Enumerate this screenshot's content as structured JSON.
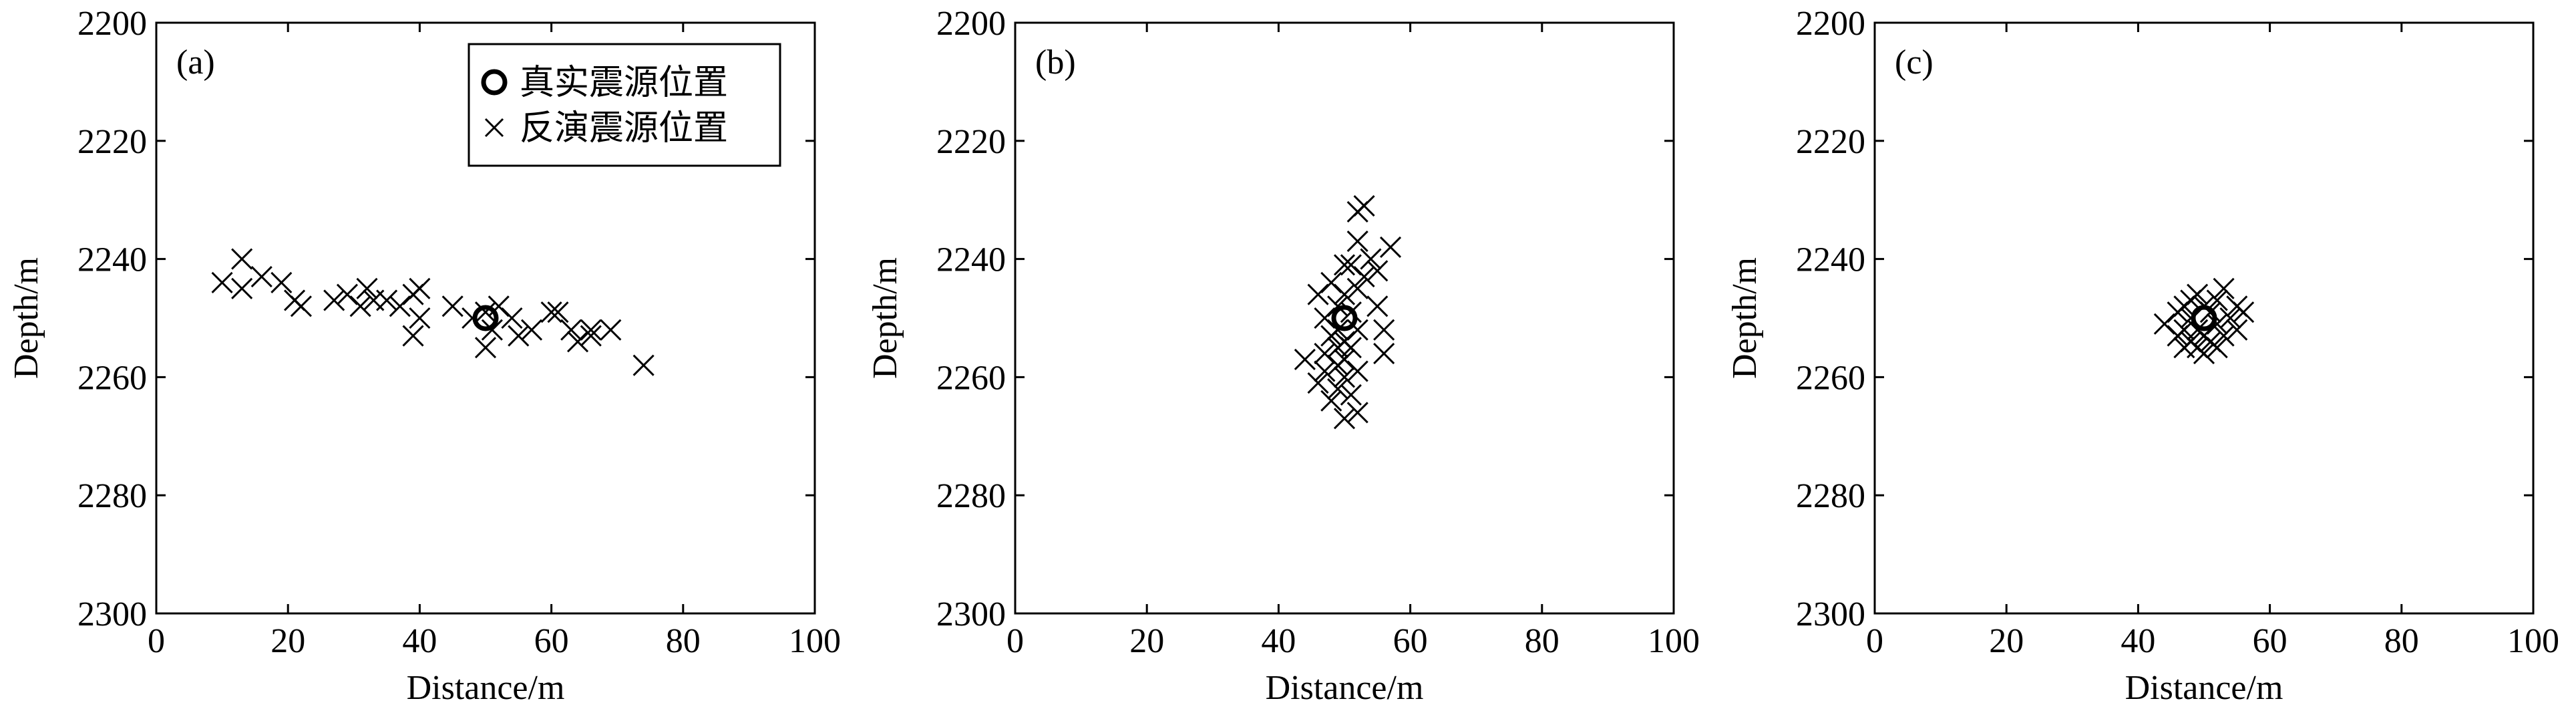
{
  "chart_data": [
    {
      "type": "scatter",
      "panel_label": "(a)",
      "xlabel": "Distance/m",
      "ylabel": "Depth/m",
      "xlim": [
        0,
        100
      ],
      "ylim": [
        2200,
        2300
      ],
      "invert_y": true,
      "xticks": [
        0,
        20,
        40,
        60,
        80,
        100
      ],
      "yticks": [
        2200,
        2220,
        2240,
        2260,
        2280,
        2300
      ],
      "legend": "upper right",
      "series": [
        {
          "name": "真实震源位置",
          "marker": "circle",
          "color": "#000000",
          "x": [
            50
          ],
          "values": [
            2250
          ]
        },
        {
          "name": "反演震源位置",
          "marker": "x",
          "color": "#000000",
          "x": [
            10,
            13,
            13,
            16,
            19,
            21,
            22,
            27,
            29,
            31,
            32,
            33,
            35,
            37,
            39,
            40,
            39,
            40,
            45,
            48,
            50,
            51,
            50,
            52,
            54,
            55,
            57,
            60,
            61,
            63,
            64,
            66,
            66,
            69,
            74
          ],
          "values": [
            2244,
            2240,
            2245,
            2243,
            2244,
            2247,
            2248,
            2247,
            2246,
            2248,
            2245,
            2247,
            2247,
            2248,
            2246,
            2245,
            2253,
            2250,
            2248,
            2250,
            2249,
            2252,
            2255,
            2248,
            2250,
            2253,
            2252,
            2249,
            2249,
            2252,
            2254,
            2253,
            2252,
            2252,
            2258
          ]
        }
      ]
    },
    {
      "type": "scatter",
      "panel_label": "(b)",
      "xlabel": "Distance/m",
      "ylabel": "Depth/m",
      "xlim": [
        0,
        100
      ],
      "ylim": [
        2200,
        2300
      ],
      "invert_y": true,
      "xticks": [
        0,
        20,
        40,
        60,
        80,
        100
      ],
      "yticks": [
        2200,
        2220,
        2240,
        2260,
        2280,
        2300
      ],
      "series": [
        {
          "marker": "circle",
          "color": "#000000",
          "x": [
            50
          ],
          "values": [
            2250
          ]
        },
        {
          "marker": "x",
          "color": "#000000",
          "x": [
            44,
            46,
            47,
            47,
            47,
            48,
            48,
            49,
            49,
            49,
            49,
            49,
            50,
            50,
            50,
            50,
            50,
            50,
            51,
            51,
            51,
            51,
            52,
            52,
            52,
            52,
            52,
            52,
            53,
            53,
            54,
            55,
            55,
            56,
            56,
            57,
            46,
            48
          ],
          "values": [
            2257,
            2246,
            2250,
            2256,
            2259,
            2244,
            2253,
            2248,
            2252,
            2255,
            2258,
            2262,
            2241,
            2246,
            2254,
            2257,
            2260,
            2267,
            2241,
            2249,
            2255,
            2263,
            2232,
            2237,
            2245,
            2252,
            2259,
            2266,
            2231,
            2243,
            2240,
            2242,
            2248,
            2252,
            2256,
            2238,
            2261,
            2264
          ]
        }
      ]
    },
    {
      "type": "scatter",
      "panel_label": "(c)",
      "xlabel": "Distance/m",
      "ylabel": "Depth/m",
      "xlim": [
        0,
        100
      ],
      "ylim": [
        2200,
        2300
      ],
      "invert_y": true,
      "xticks": [
        0,
        20,
        40,
        60,
        80,
        100
      ],
      "yticks": [
        2200,
        2220,
        2240,
        2260,
        2280,
        2300
      ],
      "series": [
        {
          "marker": "circle",
          "color": "#000000",
          "x": [
            50
          ],
          "values": [
            2250
          ]
        },
        {
          "marker": "x",
          "color": "#000000",
          "x": [
            44,
            46,
            46,
            47,
            47,
            48,
            48,
            48,
            49,
            49,
            49,
            50,
            50,
            51,
            51,
            52,
            52,
            53,
            53,
            54,
            55,
            55,
            56,
            47,
            50,
            52
          ],
          "values": [
            2251,
            2249,
            2253,
            2248,
            2252,
            2247,
            2250,
            2254,
            2246,
            2252,
            2255,
            2248,
            2253,
            2249,
            2254,
            2247,
            2251,
            2245,
            2253,
            2250,
            2248,
            2252,
            2249,
            2255,
            2256,
            2255
          ]
        }
      ]
    }
  ]
}
